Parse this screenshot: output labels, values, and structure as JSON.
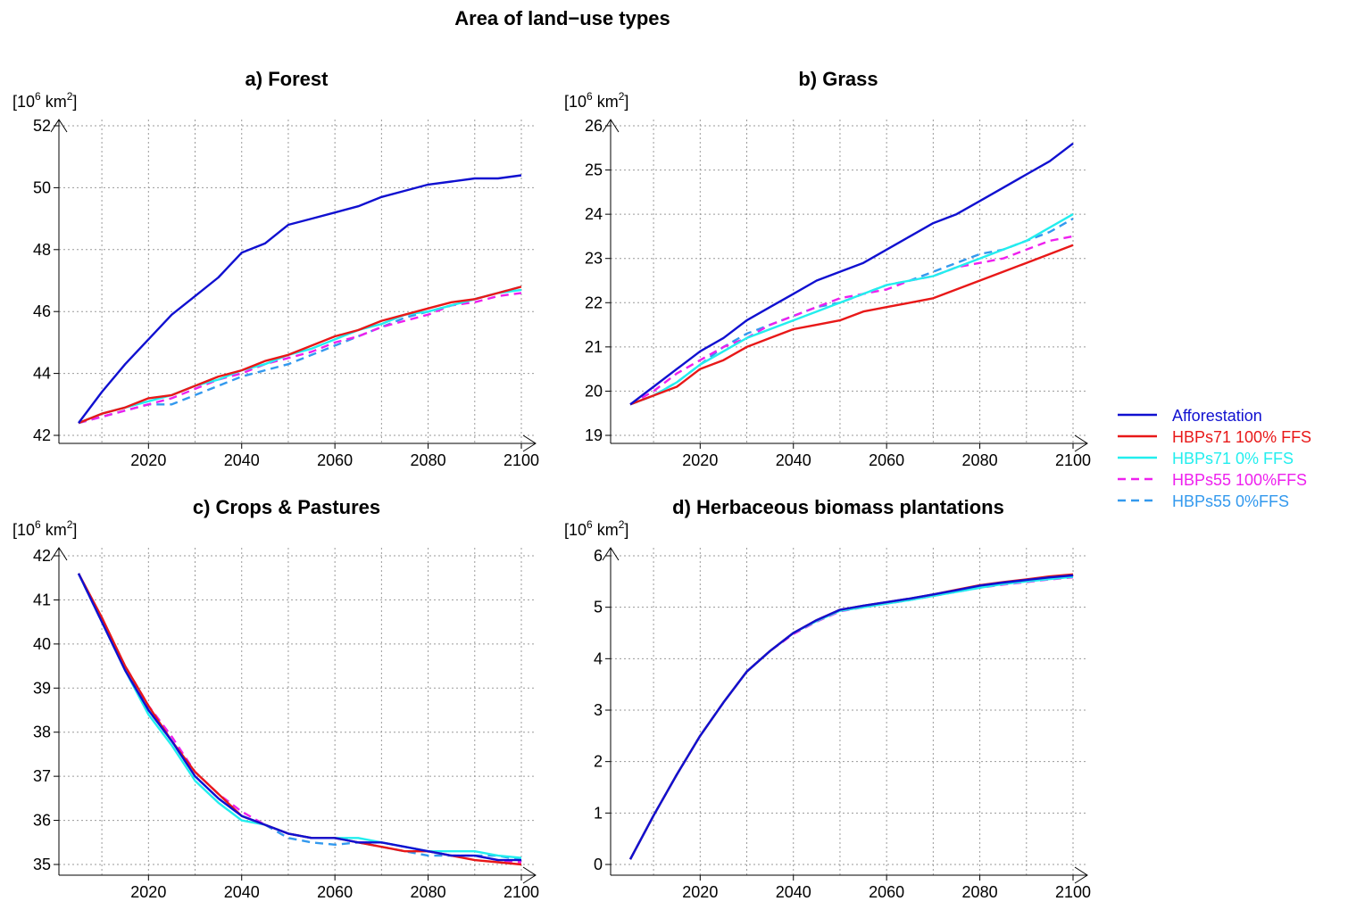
{
  "figure_title": "Area of land−use types",
  "unit_label": {
    "prefix": "[10",
    "exponent": "6",
    "mid": " km",
    "sup2": "2",
    "suffix": "]"
  },
  "legend": [
    {
      "name": "Afforestation",
      "color": "#1010d0",
      "dash": "solid"
    },
    {
      "name": "HBPs71 100% FFS",
      "color": "#e81818",
      "dash": "solid"
    },
    {
      "name": "HBPs71 0% FFS",
      "color": "#22eeee",
      "dash": "solid"
    },
    {
      "name": "HBPs55 100%FFS",
      "color": "#ee20ee",
      "dash": "dashed"
    },
    {
      "name": "HBPs55 0%FFS",
      "color": "#3399ee",
      "dash": "dashed"
    }
  ],
  "chart_data": [
    {
      "type": "line",
      "title": "a) Forest",
      "xlabel": "",
      "ylabel": "[10^6 km^2]",
      "xlim": [
        2005,
        2100
      ],
      "ylim": [
        42,
        52
      ],
      "xticks": [
        2020,
        2040,
        2060,
        2080,
        2100
      ],
      "yticks": [
        42,
        44,
        46,
        48,
        50,
        52
      ],
      "grid": true,
      "x": [
        2005,
        2010,
        2015,
        2020,
        2025,
        2030,
        2035,
        2040,
        2045,
        2050,
        2055,
        2060,
        2065,
        2070,
        2075,
        2080,
        2085,
        2090,
        2095,
        2100
      ],
      "series": [
        {
          "name": "Afforestation",
          "values": [
            42.4,
            43.4,
            44.3,
            45.1,
            45.9,
            46.5,
            47.1,
            47.9,
            48.2,
            48.8,
            49.0,
            49.2,
            49.4,
            49.7,
            49.9,
            50.1,
            50.2,
            50.3,
            50.3,
            50.4
          ]
        },
        {
          "name": "HBPs71 100% FFS",
          "values": [
            42.4,
            42.7,
            42.9,
            43.2,
            43.3,
            43.6,
            43.9,
            44.1,
            44.4,
            44.6,
            44.9,
            45.2,
            45.4,
            45.7,
            45.9,
            46.1,
            46.3,
            46.4,
            46.6,
            46.8
          ]
        },
        {
          "name": "HBPs71 0% FFS",
          "values": [
            42.4,
            42.7,
            42.9,
            43.1,
            43.3,
            43.6,
            43.8,
            44.1,
            44.3,
            44.6,
            44.8,
            45.1,
            45.4,
            45.6,
            45.9,
            46.0,
            46.2,
            46.4,
            46.6,
            46.7
          ]
        },
        {
          "name": "HBPs55 100%FFS",
          "values": [
            42.4,
            42.6,
            42.8,
            43.0,
            43.2,
            43.5,
            43.8,
            44.0,
            44.3,
            44.5,
            44.7,
            45.0,
            45.2,
            45.5,
            45.7,
            45.9,
            46.2,
            46.3,
            46.5,
            46.6
          ]
        },
        {
          "name": "HBPs55 0%FFS",
          "values": [
            42.4,
            42.6,
            42.8,
            43.0,
            43.0,
            43.3,
            43.6,
            43.9,
            44.1,
            44.3,
            44.6,
            44.9,
            45.2,
            45.5,
            45.8,
            46.0,
            46.2,
            46.4,
            46.6,
            46.8
          ]
        }
      ]
    },
    {
      "type": "line",
      "title": "b) Grass",
      "xlabel": "",
      "ylabel": "[10^6 km^2]",
      "xlim": [
        2005,
        2100
      ],
      "ylim": [
        19,
        26
      ],
      "xticks": [
        2020,
        2040,
        2060,
        2080,
        2100
      ],
      "yticks": [
        19,
        20,
        21,
        22,
        23,
        24,
        25,
        26
      ],
      "grid": true,
      "x": [
        2005,
        2010,
        2015,
        2020,
        2025,
        2030,
        2035,
        2040,
        2045,
        2050,
        2055,
        2060,
        2065,
        2070,
        2075,
        2080,
        2085,
        2090,
        2095,
        2100
      ],
      "series": [
        {
          "name": "Afforestation",
          "values": [
            19.7,
            20.1,
            20.5,
            20.9,
            21.2,
            21.6,
            21.9,
            22.2,
            22.5,
            22.7,
            22.9,
            23.2,
            23.5,
            23.8,
            24.0,
            24.3,
            24.6,
            24.9,
            25.2,
            25.6
          ]
        },
        {
          "name": "HBPs71 100% FFS",
          "values": [
            19.7,
            19.9,
            20.1,
            20.5,
            20.7,
            21.0,
            21.2,
            21.4,
            21.5,
            21.6,
            21.8,
            21.9,
            22.0,
            22.1,
            22.3,
            22.5,
            22.7,
            22.9,
            23.1,
            23.3
          ]
        },
        {
          "name": "HBPs71 0% FFS",
          "values": [
            19.7,
            19.9,
            20.2,
            20.6,
            20.9,
            21.2,
            21.4,
            21.6,
            21.8,
            22.0,
            22.2,
            22.4,
            22.5,
            22.6,
            22.8,
            23.0,
            23.2,
            23.4,
            23.7,
            24.0
          ]
        },
        {
          "name": "HBPs55 100%FFS",
          "values": [
            19.7,
            20.0,
            20.4,
            20.7,
            21.0,
            21.2,
            21.5,
            21.7,
            21.9,
            22.1,
            22.2,
            22.3,
            22.5,
            22.6,
            22.8,
            22.9,
            23.0,
            23.2,
            23.4,
            23.5
          ]
        },
        {
          "name": "HBPs55 0%FFS",
          "values": [
            19.7,
            19.9,
            20.2,
            20.6,
            21.0,
            21.3,
            21.5,
            21.7,
            21.9,
            22.0,
            22.2,
            22.4,
            22.5,
            22.7,
            22.9,
            23.1,
            23.2,
            23.4,
            23.6,
            23.9
          ]
        }
      ]
    },
    {
      "type": "line",
      "title": "c) Crops & Pastures",
      "xlabel": "",
      "ylabel": "[10^6 km^2]",
      "xlim": [
        2005,
        2100
      ],
      "ylim": [
        35,
        42
      ],
      "xticks": [
        2020,
        2040,
        2060,
        2080,
        2100
      ],
      "yticks": [
        35,
        36,
        37,
        38,
        39,
        40,
        41,
        42
      ],
      "grid": true,
      "x": [
        2005,
        2010,
        2015,
        2020,
        2025,
        2030,
        2035,
        2040,
        2045,
        2050,
        2055,
        2060,
        2065,
        2070,
        2075,
        2080,
        2085,
        2090,
        2095,
        2100
      ],
      "series": [
        {
          "name": "Afforestation",
          "values": [
            41.6,
            40.5,
            39.4,
            38.5,
            37.8,
            37.0,
            36.5,
            36.1,
            35.9,
            35.7,
            35.6,
            35.6,
            35.5,
            35.5,
            35.4,
            35.3,
            35.2,
            35.2,
            35.1,
            35.1
          ]
        },
        {
          "name": "HBPs71 100% FFS",
          "values": [
            41.6,
            40.6,
            39.5,
            38.6,
            37.8,
            37.1,
            36.6,
            36.1,
            35.9,
            35.7,
            35.6,
            35.6,
            35.5,
            35.4,
            35.3,
            35.3,
            35.2,
            35.1,
            35.05,
            35.0
          ]
        },
        {
          "name": "HBPs71 0% FFS",
          "values": [
            41.6,
            40.5,
            39.4,
            38.4,
            37.7,
            36.9,
            36.4,
            36.0,
            35.9,
            35.7,
            35.6,
            35.6,
            35.6,
            35.5,
            35.4,
            35.3,
            35.3,
            35.3,
            35.2,
            35.15
          ]
        },
        {
          "name": "HBPs55 100%FFS",
          "values": [
            41.6,
            40.5,
            39.5,
            38.6,
            37.9,
            37.1,
            36.6,
            36.2,
            35.9,
            35.7,
            35.6,
            35.6,
            35.5,
            35.5,
            35.4,
            35.3,
            35.2,
            35.2,
            35.1,
            35.05
          ]
        },
        {
          "name": "HBPs55 0%FFS",
          "values": [
            41.6,
            40.5,
            39.5,
            38.5,
            37.8,
            37.0,
            36.5,
            36.1,
            35.9,
            35.6,
            35.5,
            35.45,
            35.5,
            35.4,
            35.3,
            35.2,
            35.2,
            35.2,
            35.2,
            35.1
          ]
        }
      ]
    },
    {
      "type": "line",
      "title": "d) Herbaceous biomass plantations",
      "xlabel": "",
      "ylabel": "[10^6 km^2]",
      "xlim": [
        2005,
        2100
      ],
      "ylim": [
        0,
        6
      ],
      "xticks": [
        2020,
        2040,
        2060,
        2080,
        2100
      ],
      "yticks": [
        0,
        1,
        2,
        3,
        4,
        5,
        6
      ],
      "grid": true,
      "x": [
        2005,
        2010,
        2015,
        2020,
        2025,
        2030,
        2035,
        2040,
        2045,
        2050,
        2055,
        2060,
        2065,
        2070,
        2075,
        2080,
        2085,
        2090,
        2095,
        2100
      ],
      "series": [
        {
          "name": "Afforestation",
          "values": [
            0.1,
            0.95,
            1.75,
            2.5,
            3.15,
            3.75,
            4.15,
            4.5,
            4.75,
            4.95,
            5.03,
            5.1,
            5.17,
            5.25,
            5.33,
            5.42,
            5.48,
            5.53,
            5.58,
            5.62
          ]
        },
        {
          "name": "HBPs71 100% FFS",
          "values": [
            0.1,
            0.95,
            1.75,
            2.5,
            3.15,
            3.75,
            4.15,
            4.5,
            4.75,
            4.95,
            5.03,
            5.1,
            5.17,
            5.25,
            5.34,
            5.43,
            5.49,
            5.54,
            5.6,
            5.64
          ]
        },
        {
          "name": "HBPs71 0% FFS",
          "values": [
            0.1,
            0.95,
            1.75,
            2.5,
            3.15,
            3.75,
            4.15,
            4.5,
            4.73,
            4.93,
            5.0,
            5.07,
            5.14,
            5.22,
            5.3,
            5.38,
            5.45,
            5.5,
            5.55,
            5.59
          ]
        },
        {
          "name": "HBPs55 100%FFS",
          "values": [
            0.1,
            0.95,
            1.75,
            2.5,
            3.15,
            3.75,
            4.15,
            4.48,
            4.72,
            4.92,
            5.0,
            5.07,
            5.14,
            5.22,
            5.3,
            5.38,
            5.44,
            5.49,
            5.54,
            5.58
          ]
        },
        {
          "name": "HBPs55 0%FFS",
          "values": [
            0.1,
            0.95,
            1.75,
            2.5,
            3.15,
            3.75,
            4.15,
            4.5,
            4.74,
            4.94,
            5.02,
            5.09,
            5.16,
            5.24,
            5.32,
            5.41,
            5.47,
            5.52,
            5.57,
            5.61
          ]
        }
      ]
    }
  ]
}
